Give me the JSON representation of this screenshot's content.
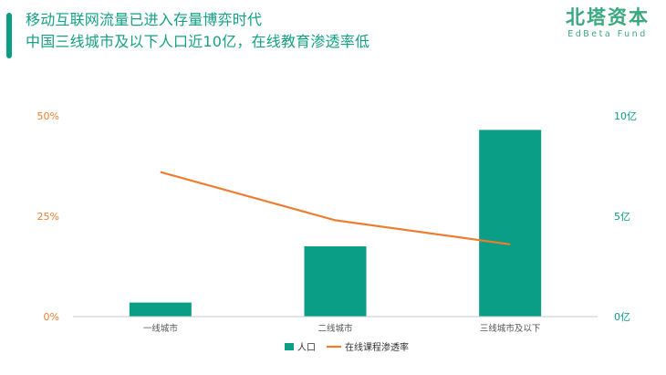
{
  "header": {
    "line1": "移动互联网流量已进入存量博弈时代",
    "line2": "中国三线城市及以下人口近10亿，在线教育渗透率低"
  },
  "logo": {
    "name_cn": "北塔资本",
    "name_en": "EdBeta Fund"
  },
  "colors": {
    "bar": "#0a9e86",
    "line": "#ed7d31",
    "title": "#16a085",
    "left_axis": "#ed7d31",
    "right_axis": "#0a9e86"
  },
  "chart_data": {
    "type": "bar",
    "title": "",
    "categories": [
      "一线城市",
      "二线城市",
      "三线城市及以下"
    ],
    "series": [
      {
        "name": "人口",
        "type": "bar",
        "axis": "right",
        "values": [
          0.7,
          3.5,
          9.3
        ]
      },
      {
        "name": "在线课程渗透率",
        "type": "line",
        "axis": "left",
        "values": [
          36,
          24,
          18
        ]
      }
    ],
    "left_axis": {
      "ticks": [
        "0%",
        "25%",
        "50%"
      ],
      "ylim": [
        0,
        50
      ]
    },
    "right_axis": {
      "ticks": [
        "0亿",
        "5亿",
        "10亿"
      ],
      "ylim": [
        0,
        10
      ]
    },
    "grid": false,
    "legend": "bottom-center"
  }
}
